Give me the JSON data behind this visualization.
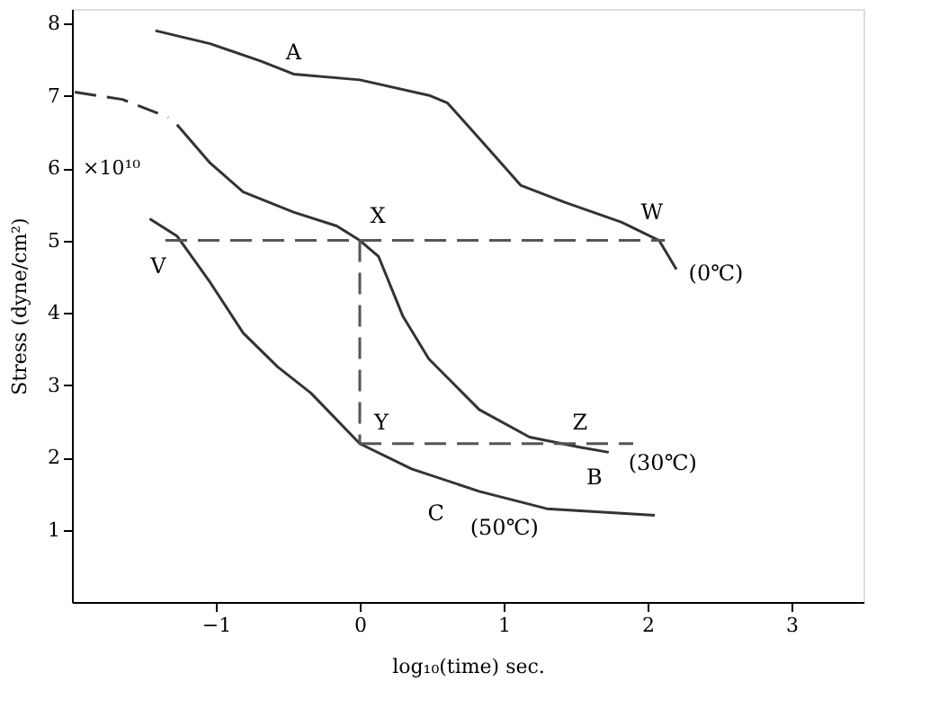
{
  "chart_data": {
    "type": "line",
    "xlabel": "log₁₀(time) sec.",
    "ylabel": "Stress (dyne/cm²)",
    "xlim": [
      -2,
      3.5
    ],
    "ylim": [
      0,
      8.2
    ],
    "xticks": [
      -1,
      0,
      1,
      2,
      3
    ],
    "yticks": [
      1,
      2,
      3,
      4,
      5,
      6,
      7,
      8
    ],
    "grid": false,
    "series": [
      {
        "color": "#333333",
        "line_style": "solid",
        "x": [
          -1.42,
          -1.04,
          -0.69,
          -0.46,
          0,
          0.49,
          0.61,
          0.88,
          1.12,
          1.42,
          1.82,
          2.08,
          2.2
        ],
        "values": [
          7.9,
          7.72,
          7.48,
          7.3,
          7.22,
          7.0,
          6.9,
          6.3,
          5.76,
          5.53,
          5.25,
          5.0,
          4.6
        ]
      },
      {
        "color": "#333333",
        "line_style": "dashed",
        "x": [
          -1.98,
          -1.65,
          -1.33
        ],
        "values": [
          7.05,
          6.95,
          6.7
        ]
      },
      {
        "color": "#333333",
        "line_style": "solid",
        "x": [
          -1.27,
          -1.04,
          -0.81,
          -0.46,
          -0.16,
          0,
          0.13,
          0.3,
          0.48,
          0.83,
          1.18,
          1.53,
          1.73
        ],
        "values": [
          6.6,
          6.07,
          5.67,
          5.39,
          5.2,
          5.0,
          4.78,
          3.95,
          3.36,
          2.66,
          2.28,
          2.14,
          2.07
        ]
      },
      {
        "color": "#333333",
        "line_style": "solid",
        "x": [
          -1.46,
          -1.27,
          -1.04,
          -0.81,
          -0.57,
          -0.34,
          0,
          0.36,
          0.83,
          1.3,
          2.05
        ],
        "values": [
          5.3,
          5.06,
          4.42,
          3.72,
          3.25,
          2.89,
          2.19,
          1.84,
          1.53,
          1.29,
          1.2
        ]
      },
      {
        "color": "#555555",
        "line_style": "dashed",
        "x": [
          -1.35,
          2.12
        ],
        "values": [
          5.0,
          5.0
        ]
      },
      {
        "color": "#555555",
        "line_style": "dashed",
        "x": [
          0,
          0
        ],
        "values": [
          5.0,
          2.19
        ]
      },
      {
        "color": "#555555",
        "line_style": "dashed",
        "x": [
          0,
          1.9
        ],
        "values": [
          2.19,
          2.19
        ]
      }
    ],
    "annotations": [
      "×10¹⁰",
      {
        "text": "A",
        "x": -0.46,
        "y": 7.3
      },
      {
        "text": "W",
        "x": 2.08,
        "y": 5.0
      },
      {
        "text": "(0℃)",
        "x": 2.2,
        "y": 4.6
      },
      {
        "text": "X",
        "x": 0,
        "y": 5.0
      },
      {
        "text": "V",
        "x": -1.35,
        "y": 5.0
      },
      {
        "text": "Y",
        "x": 0,
        "y": 2.19
      },
      {
        "text": "Z",
        "x": 1.53,
        "y": 2.14
      },
      {
        "text": "B",
        "x": 1.73,
        "y": 2.07
      },
      {
        "text": "(30℃)",
        "x": 1.73,
        "y": 2.07
      },
      {
        "text": "C",
        "x": 0.83,
        "y": 1.53
      },
      {
        "text": "(50℃)",
        "x": 0.83,
        "y": 1.53
      }
    ]
  }
}
